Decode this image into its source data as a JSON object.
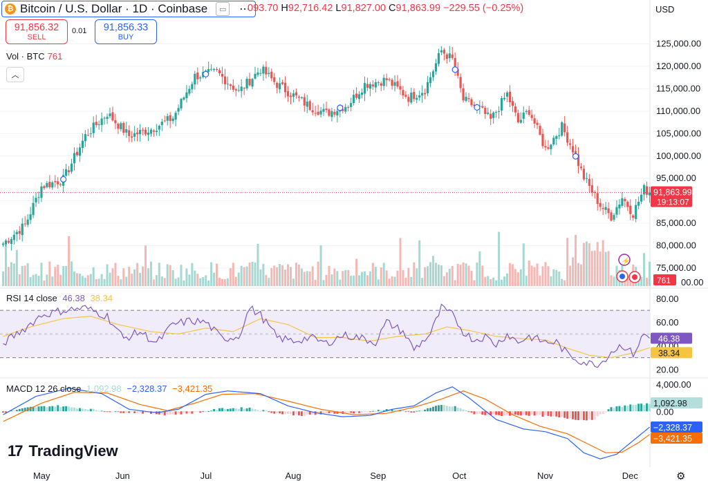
{
  "header": {
    "symbol_icon": "bitcoin-icon",
    "symbol_title": "Bitcoin / U.S. Dollar · 1D · Coinbase",
    "menu_glyph": "⋯",
    "ohlc": {
      "o_label": "",
      "o_value": "093.70",
      "h_label": "H",
      "h_value": "92,716.42",
      "l_label": "L",
      "l_value": "91,827.00",
      "c_label": "C",
      "c_value": "91,863.99",
      "change": "−229.55 (−0.25%)"
    }
  },
  "trade": {
    "sell_price": "91,856.32",
    "sell_label": "SELL",
    "spread": "0.01",
    "buy_price": "91,856.33",
    "buy_label": "BUY"
  },
  "volume_label": {
    "name": "Vol · BTC",
    "value": "761"
  },
  "currency": "USD",
  "rsi_label": {
    "name": "RSI 14 close",
    "v1": "46.38",
    "v2": "38.34"
  },
  "macd_label": {
    "name": "MACD 12 26 close",
    "v1": "1,092.98",
    "v2": "−2,328.37",
    "v3": "−3,421.35"
  },
  "brand": "TradingView",
  "colors": {
    "up": "#26a69a",
    "down": "#ef5350",
    "price_tag": "#f23645",
    "rsi_line": "#7e57c2",
    "rsi_ma": "#f5c542",
    "macd_line": "#2962ff",
    "signal_line": "#ff6d00"
  },
  "chart_data": [
    {
      "type": "candlestick",
      "title": "Bitcoin / U.S. Dollar · 1D · Coinbase",
      "y_axis": {
        "ticks": [
          125000,
          120000,
          115000,
          110000,
          105000,
          100000,
          95000,
          90000,
          85000,
          80000,
          75000
        ],
        "tick_labels": [
          "125,000.00",
          "120,000.00",
          "115,000.00",
          "110,000.00",
          "105,000.00",
          "100,000.00",
          "95,000.00",
          "",
          "85,000.00",
          "80,000.00",
          "75,000.00"
        ],
        "last_tick_label": "00.00",
        "range": [
          71000,
          128000
        ]
      },
      "x_axis": {
        "labels": [
          "May",
          "Jun",
          "Jul",
          "Aug",
          "Sep",
          "Oct",
          "Nov",
          "Dec"
        ]
      },
      "last_price": "91,863.99",
      "countdown": "19:13:07",
      "close_anchors": [
        [
          0,
          80500
        ],
        [
          8,
          84600
        ],
        [
          14,
          93200
        ],
        [
          22,
          94800
        ],
        [
          30,
          104500
        ],
        [
          38,
          109500
        ],
        [
          46,
          104500
        ],
        [
          54,
          106000
        ],
        [
          62,
          108500
        ],
        [
          70,
          117800
        ],
        [
          78,
          118700
        ],
        [
          86,
          114300
        ],
        [
          94,
          119400
        ],
        [
          100,
          116000
        ],
        [
          106,
          113500
        ],
        [
          112,
          111000
        ],
        [
          118,
          109500
        ],
        [
          126,
          111500
        ],
        [
          132,
          116000
        ],
        [
          140,
          117000
        ],
        [
          148,
          113000
        ],
        [
          154,
          114800
        ],
        [
          160,
          123500
        ],
        [
          164,
          121500
        ],
        [
          168,
          112500
        ],
        [
          174,
          110500
        ],
        [
          178,
          108000
        ],
        [
          184,
          113800
        ],
        [
          188,
          107500
        ],
        [
          192,
          110200
        ],
        [
          198,
          101500
        ],
        [
          204,
          106500
        ],
        [
          208,
          101500
        ],
        [
          212,
          95200
        ],
        [
          218,
          89000
        ],
        [
          222,
          86500
        ],
        [
          226,
          90800
        ],
        [
          230,
          87200
        ],
        [
          234,
          92600
        ],
        [
          236,
          91864
        ]
      ],
      "volume": {
        "label": "Vol · BTC",
        "last_value": "761"
      }
    },
    {
      "type": "line",
      "title": "RSI 14 close",
      "y_axis": {
        "ticks": [
          80,
          60,
          40,
          20
        ],
        "tick_labels": [
          "80.00",
          "60.00",
          "40.00",
          "20.00"
        ],
        "range": [
          14,
          87
        ],
        "bands": [
          70,
          30
        ],
        "midline": 50
      },
      "series": [
        {
          "name": "RSI",
          "last": 46.38,
          "points": [
            [
              0,
              42
            ],
            [
              8,
              55
            ],
            [
              14,
              66
            ],
            [
              22,
              70
            ],
            [
              30,
              72
            ],
            [
              38,
              65
            ],
            [
              44,
              46
            ],
            [
              50,
              52
            ],
            [
              56,
              42
            ],
            [
              62,
              58
            ],
            [
              68,
              61
            ],
            [
              74,
              60
            ],
            [
              80,
              46
            ],
            [
              86,
              48
            ],
            [
              90,
              72
            ],
            [
              94,
              66
            ],
            [
              100,
              47
            ],
            [
              106,
              44
            ],
            [
              112,
              47
            ],
            [
              118,
              42
            ],
            [
              124,
              49
            ],
            [
              130,
              47
            ],
            [
              136,
              43
            ],
            [
              140,
              60
            ],
            [
              146,
              52
            ],
            [
              150,
              37
            ],
            [
              156,
              50
            ],
            [
              160,
              72
            ],
            [
              164,
              66
            ],
            [
              168,
              52
            ],
            [
              172,
              45
            ],
            [
              176,
              48
            ],
            [
              180,
              41
            ],
            [
              184,
              50
            ],
            [
              188,
              43
            ],
            [
              192,
              48
            ],
            [
              198,
              43
            ],
            [
              202,
              43
            ],
            [
              206,
              33
            ],
            [
              210,
              28
            ],
            [
              214,
              25
            ],
            [
              218,
              25
            ],
            [
              222,
              35
            ],
            [
              226,
              41
            ],
            [
              230,
              33
            ],
            [
              234,
              50
            ],
            [
              236,
              46.38
            ]
          ]
        },
        {
          "name": "RSI MA",
          "last": 38.34,
          "points": [
            [
              0,
              48
            ],
            [
              10,
              56
            ],
            [
              22,
              63
            ],
            [
              32,
              65
            ],
            [
              42,
              58
            ],
            [
              54,
              52
            ],
            [
              64,
              50
            ],
            [
              74,
              55
            ],
            [
              84,
              52
            ],
            [
              94,
              63
            ],
            [
              104,
              58
            ],
            [
              114,
              47
            ],
            [
              124,
              47
            ],
            [
              134,
              44
            ],
            [
              144,
              48
            ],
            [
              154,
              50
            ],
            [
              162,
              56
            ],
            [
              170,
              53
            ],
            [
              180,
              48
            ],
            [
              190,
              46
            ],
            [
              198,
              45
            ],
            [
              206,
              38
            ],
            [
              214,
              32
            ],
            [
              222,
              30
            ],
            [
              230,
              34
            ],
            [
              236,
              38.34
            ]
          ]
        }
      ]
    },
    {
      "type": "bar+line",
      "title": "MACD 12 26 close",
      "y_axis": {
        "ticks": [
          4000,
          0
        ],
        "tick_labels": [
          "4,000.00",
          "0.00"
        ],
        "range": [
          -8000,
          4600
        ]
      },
      "series": [
        {
          "name": "Histogram",
          "last": 1092.98,
          "points": [
            [
              0,
              -200
            ],
            [
              10,
              600
            ],
            [
              20,
              800
            ],
            [
              30,
              400
            ],
            [
              40,
              -100
            ],
            [
              50,
              -200
            ],
            [
              60,
              -500
            ],
            [
              70,
              -200
            ],
            [
              80,
              400
            ],
            [
              90,
              500
            ],
            [
              100,
              -300
            ],
            [
              110,
              -600
            ],
            [
              120,
              -300
            ],
            [
              130,
              -200
            ],
            [
              140,
              300
            ],
            [
              150,
              -100
            ],
            [
              160,
              900
            ],
            [
              166,
              600
            ],
            [
              172,
              -400
            ],
            [
              180,
              -600
            ],
            [
              190,
              -500
            ],
            [
              198,
              -700
            ],
            [
              206,
              -1000
            ],
            [
              212,
              -1300
            ],
            [
              216,
              -1100
            ],
            [
              222,
              500
            ],
            [
              228,
              900
            ],
            [
              236,
              1092.98
            ]
          ]
        },
        {
          "name": "MACD",
          "last": -2328.37,
          "points": [
            [
              0,
              -500
            ],
            [
              12,
              2200
            ],
            [
              24,
              3400
            ],
            [
              36,
              2600
            ],
            [
              46,
              300
            ],
            [
              56,
              -200
            ],
            [
              64,
              300
            ],
            [
              74,
              2500
            ],
            [
              82,
              3000
            ],
            [
              94,
              2600
            ],
            [
              104,
              800
            ],
            [
              114,
              -200
            ],
            [
              124,
              -800
            ],
            [
              134,
              -600
            ],
            [
              142,
              300
            ],
            [
              150,
              800
            ],
            [
              158,
              2700
            ],
            [
              164,
              3600
            ],
            [
              170,
              2000
            ],
            [
              180,
              -1200
            ],
            [
              190,
              -2600
            ],
            [
              198,
              -3000
            ],
            [
              206,
              -4000
            ],
            [
              212,
              -6100
            ],
            [
              218,
              -7000
            ],
            [
              224,
              -6300
            ],
            [
              230,
              -4300
            ],
            [
              236,
              -2328.37
            ]
          ]
        },
        {
          "name": "Signal",
          "last": -3421.35,
          "points": [
            [
              0,
              -1500
            ],
            [
              14,
              1200
            ],
            [
              26,
              2800
            ],
            [
              38,
              2700
            ],
            [
              50,
              1000
            ],
            [
              60,
              100
            ],
            [
              70,
              1200
            ],
            [
              80,
              2500
            ],
            [
              92,
              2600
            ],
            [
              104,
              1500
            ],
            [
              116,
              300
            ],
            [
              128,
              -500
            ],
            [
              140,
              -300
            ],
            [
              150,
              600
            ],
            [
              160,
              1800
            ],
            [
              168,
              3000
            ],
            [
              176,
              1800
            ],
            [
              186,
              -500
            ],
            [
              196,
              -2200
            ],
            [
              206,
              -3300
            ],
            [
              214,
              -4900
            ],
            [
              220,
              -6100
            ],
            [
              226,
              -6000
            ],
            [
              232,
              -4600
            ],
            [
              236,
              -3421.35
            ]
          ]
        }
      ]
    }
  ]
}
